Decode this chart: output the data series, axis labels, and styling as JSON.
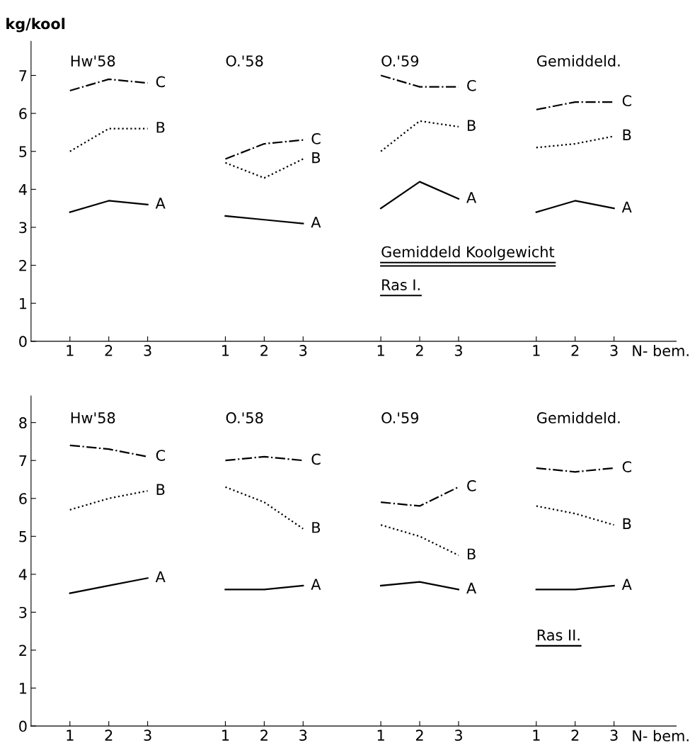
{
  "chart_data": [
    {
      "type": "line",
      "ylabel": "kg/kool",
      "xlabel": "N- bem.",
      "categories": [
        "1",
        "2",
        "3",
        null,
        "1",
        "2",
        "3",
        null,
        "1",
        "2",
        "3",
        null,
        "1",
        "2",
        "3"
      ],
      "ylim": [
        0,
        7.9
      ],
      "yticks": [
        0,
        1,
        2,
        3,
        4,
        5,
        6,
        7
      ],
      "grid": false,
      "legend": false,
      "marker": "none",
      "annotations": [
        "Hw'58",
        "O.'58",
        "O.'59",
        "Gemiddeld.",
        "Gemiddeld Koolgewicht",
        "Ras I."
      ],
      "series": [
        {
          "name": "A",
          "color": "#000000",
          "line_style": "solid",
          "values": [
            3.4,
            3.7,
            3.6,
            null,
            3.3,
            3.2,
            3.1,
            null,
            3.5,
            4.2,
            3.75,
            null,
            3.4,
            3.7,
            3.5
          ]
        },
        {
          "name": "B",
          "color": "#000000",
          "line_style": "dotted",
          "values": [
            5.0,
            5.6,
            5.6,
            null,
            4.7,
            4.3,
            4.8,
            null,
            5.0,
            5.8,
            5.65,
            null,
            5.1,
            5.2,
            5.4
          ]
        },
        {
          "name": "C",
          "color": "#000000",
          "line_style": "dashdot",
          "values": [
            6.6,
            6.9,
            6.8,
            null,
            4.8,
            5.2,
            5.3,
            null,
            7.0,
            6.7,
            6.7,
            null,
            6.1,
            6.3,
            6.3
          ]
        }
      ]
    },
    {
      "type": "line",
      "xlabel": "N- bem.",
      "categories": [
        "1",
        "2",
        "3",
        null,
        "1",
        "2",
        "3",
        null,
        "1",
        "2",
        "3",
        null,
        "1",
        "2",
        "3"
      ],
      "ylim": [
        0,
        8.7
      ],
      "yticks": [
        0,
        1,
        2,
        3,
        4,
        5,
        6,
        7,
        8
      ],
      "grid": false,
      "legend": false,
      "marker": "none",
      "annotations": [
        "Hw'58",
        "O.'58",
        "O.'59",
        "Gemiddeld.",
        "Ras II."
      ],
      "series": [
        {
          "name": "A",
          "color": "#000000",
          "line_style": "solid",
          "values": [
            3.5,
            3.7,
            3.9,
            null,
            3.6,
            3.6,
            3.7,
            null,
            3.7,
            3.8,
            3.6,
            null,
            3.6,
            3.6,
            3.7
          ]
        },
        {
          "name": "B",
          "color": "#000000",
          "line_style": "dotted",
          "values": [
            5.7,
            6.0,
            6.2,
            null,
            6.3,
            5.9,
            5.2,
            null,
            5.3,
            5.0,
            4.5,
            null,
            5.8,
            5.6,
            5.3
          ]
        },
        {
          "name": "C",
          "color": "#000000",
          "line_style": "dashdot",
          "values": [
            7.4,
            7.3,
            7.1,
            null,
            7.0,
            7.1,
            7.0,
            null,
            5.9,
            5.8,
            6.3,
            null,
            6.8,
            6.7,
            6.8
          ]
        }
      ]
    }
  ]
}
